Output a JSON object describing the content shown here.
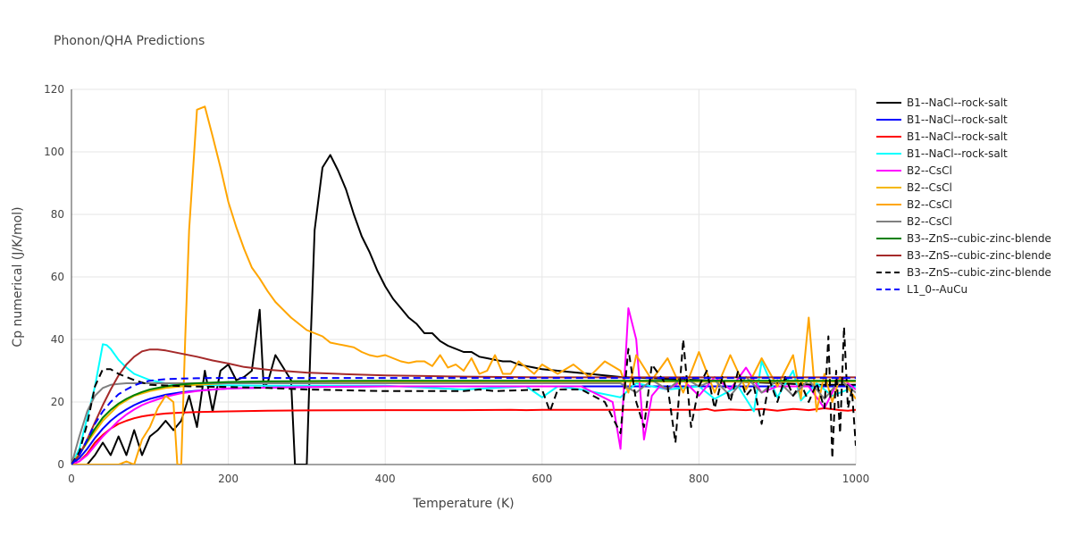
{
  "chart_data": {
    "type": "line",
    "title": "Phonon/QHA Predictions",
    "xlabel": "Temperature (K)",
    "ylabel": "Cp numerical (J/K/mol)",
    "xlim": [
      0,
      1000
    ],
    "ylim": [
      0,
      120
    ],
    "xticks": [
      0,
      200,
      400,
      600,
      800,
      1000
    ],
    "yticks": [
      0,
      20,
      40,
      60,
      80,
      100,
      120
    ],
    "grid": true,
    "legend_position": "right",
    "series": [
      {
        "name": "B1--NaCl--rock-salt",
        "color": "#000000",
        "dash": "solid",
        "x": [
          0,
          10,
          20,
          30,
          40,
          50,
          60,
          70,
          80,
          90,
          100,
          110,
          120,
          130,
          140,
          150,
          160,
          170,
          180,
          190,
          200,
          210,
          220,
          230,
          240,
          245,
          250,
          260,
          270,
          280,
          285,
          290,
          295,
          300,
          305,
          310,
          320,
          330,
          340,
          350,
          360,
          370,
          380,
          390,
          400,
          410,
          420,
          430,
          440,
          450,
          460,
          470,
          480,
          490,
          500,
          510,
          520,
          530,
          540,
          550,
          560,
          570,
          580,
          590,
          600,
          620,
          640,
          660,
          680,
          700,
          750,
          800,
          850,
          900,
          950,
          1000
        ],
        "y": [
          0,
          0,
          0,
          3,
          7,
          3,
          9,
          3,
          11,
          3,
          9,
          11,
          14,
          11,
          14,
          22,
          12,
          30,
          17,
          30,
          32,
          27,
          28,
          30,
          49.5,
          25,
          26,
          35,
          31,
          27,
          0,
          0,
          0,
          0,
          40,
          75,
          95,
          99,
          94,
          88,
          80,
          73,
          68,
          62,
          57,
          53,
          50,
          47,
          45,
          42,
          42,
          39.5,
          38,
          37,
          36,
          36,
          34.5,
          34,
          33.5,
          33,
          33,
          32,
          31.5,
          31,
          30.5,
          30,
          29.5,
          29,
          28.5,
          28,
          27.5,
          27,
          26.5,
          26,
          25.5,
          25.5
        ]
      },
      {
        "name": "B1--NaCl--rock-salt",
        "color": "#0000ff",
        "dash": "solid",
        "x": [
          0,
          10,
          20,
          30,
          40,
          50,
          60,
          70,
          80,
          90,
          100,
          120,
          140,
          160,
          180,
          200,
          250,
          300,
          400,
          500,
          600,
          700,
          800,
          900,
          1000
        ],
        "y": [
          0,
          2,
          5,
          8.5,
          11.5,
          14,
          16,
          17.6,
          19,
          20.1,
          21,
          22.3,
          23.1,
          23.6,
          24,
          24.3,
          24.6,
          24.8,
          25,
          25,
          25,
          25,
          25,
          25,
          25
        ]
      },
      {
        "name": "B1--NaCl--rock-salt",
        "color": "#ff0000",
        "dash": "solid",
        "x": [
          0,
          10,
          20,
          30,
          40,
          50,
          60,
          70,
          80,
          90,
          100,
          120,
          140,
          160,
          180,
          200,
          250,
          300,
          400,
          500,
          560,
          580,
          600,
          700,
          780,
          790,
          800,
          810,
          820,
          840,
          860,
          880,
          900,
          920,
          940,
          960,
          980,
          990,
          1000
        ],
        "y": [
          0,
          1,
          3.5,
          7,
          9.5,
          11.5,
          13,
          14,
          14.8,
          15.4,
          15.8,
          16.3,
          16.6,
          16.8,
          16.9,
          17,
          17.2,
          17.3,
          17.4,
          17.4,
          17.5,
          17.4,
          17.5,
          17.5,
          17.5,
          17.5,
          17.5,
          17.8,
          17.2,
          17.6,
          17.4,
          17.8,
          17.2,
          17.8,
          17.4,
          18,
          17.4,
          17.2,
          17.5
        ]
      },
      {
        "name": "B1--NaCl--rock-salt",
        "color": "#00ffff",
        "dash": "solid",
        "x": [
          0,
          10,
          20,
          30,
          40,
          45,
          50,
          60,
          70,
          80,
          90,
          100,
          120,
          140,
          160,
          180,
          200,
          250,
          300,
          400,
          500,
          580,
          600,
          620,
          650,
          700,
          720,
          760,
          800,
          820,
          850,
          870,
          880,
          900,
          920,
          930,
          950,
          970,
          1000
        ],
        "y": [
          0,
          5,
          15,
          25,
          38.5,
          38.2,
          37,
          33.5,
          31,
          29,
          28,
          27,
          26,
          25.6,
          25.5,
          25.4,
          25.3,
          25.2,
          25.2,
          25.2,
          24,
          25,
          21.5,
          25,
          24,
          21.5,
          26,
          24,
          25,
          21,
          25,
          17,
          33,
          21.5,
          30,
          20.5,
          26,
          22,
          25
        ]
      },
      {
        "name": "B2--CsCl",
        "color": "#ff00ff",
        "dash": "solid",
        "x": [
          0,
          10,
          20,
          30,
          40,
          50,
          60,
          70,
          80,
          90,
          100,
          120,
          140,
          160,
          180,
          200,
          250,
          300,
          400,
          500,
          600,
          650,
          690,
          700,
          710,
          720,
          730,
          740,
          750,
          760,
          780,
          800,
          820,
          840,
          860,
          880,
          900,
          940,
          960,
          980,
          1000
        ],
        "y": [
          0,
          1,
          3,
          6,
          9,
          11.5,
          14,
          16,
          17.6,
          19,
          20,
          21.7,
          22.8,
          23.5,
          24,
          24.3,
          24.6,
          24.8,
          25,
          25,
          25,
          25,
          20,
          5,
          50,
          40,
          8,
          22,
          25,
          24,
          27,
          22,
          28,
          24,
          31,
          23,
          25,
          25,
          18,
          28,
          24
        ]
      },
      {
        "name": "B2--CsCl",
        "color": "#f5b800",
        "dash": "solid",
        "x": [
          0,
          20,
          40,
          60,
          80,
          100,
          120,
          140,
          160,
          180,
          200,
          250,
          300,
          400,
          500,
          600,
          700,
          800,
          900,
          1000
        ],
        "y": [
          0,
          7,
          14,
          19,
          22,
          23.5,
          24.5,
          25,
          25.5,
          25.8,
          26,
          26.2,
          26.4,
          26.5,
          26.5,
          26.5,
          26.5,
          26.5,
          26.5,
          26.5
        ]
      },
      {
        "name": "B2--CsCl",
        "color": "#ffa500",
        "dash": "solid",
        "x": [
          0,
          60,
          70,
          80,
          90,
          100,
          110,
          120,
          130,
          135,
          140,
          145,
          150,
          160,
          170,
          180,
          190,
          200,
          210,
          220,
          230,
          240,
          250,
          260,
          270,
          280,
          290,
          300,
          310,
          320,
          330,
          340,
          350,
          360,
          370,
          380,
          390,
          400,
          410,
          420,
          430,
          440,
          450,
          460,
          470,
          480,
          490,
          500,
          510,
          520,
          530,
          540,
          550,
          560,
          570,
          580,
          590,
          600,
          620,
          640,
          660,
          680,
          700,
          710,
          720,
          740,
          760,
          780,
          800,
          820,
          840,
          860,
          880,
          900,
          920,
          930,
          940,
          950,
          960,
          970,
          980,
          1000
        ],
        "y": [
          0,
          0,
          1,
          0,
          8,
          12,
          18,
          22,
          20,
          0,
          0,
          40,
          75,
          113.5,
          114.5,
          105,
          95,
          84,
          76,
          69,
          63,
          59.5,
          55.5,
          52,
          49.5,
          47,
          45,
          43,
          42,
          41,
          39,
          38.5,
          38,
          37.5,
          36,
          35,
          34.5,
          35,
          34,
          33,
          32.5,
          33,
          33,
          31.5,
          35,
          31,
          32,
          30,
          34,
          29,
          30,
          35,
          29,
          29,
          33,
          31,
          29,
          32,
          29,
          32,
          28,
          33,
          30,
          23,
          35,
          27,
          34,
          23,
          36,
          23,
          35,
          24,
          34,
          25,
          35,
          21,
          47,
          17,
          29,
          20,
          28,
          21
        ]
      },
      {
        "name": "B2--CsCl",
        "color": "#808080",
        "dash": "solid",
        "x": [
          0,
          10,
          20,
          30,
          40,
          50,
          60,
          70,
          80,
          90,
          100,
          120,
          140,
          160,
          180,
          200,
          250,
          300,
          400,
          500,
          600,
          700,
          720,
          740,
          760,
          780,
          800,
          820,
          840,
          860,
          880,
          900,
          920,
          940,
          960,
          980,
          1000
        ],
        "y": [
          0,
          9,
          17,
          22,
          24.5,
          25.5,
          25.8,
          26,
          26,
          26,
          26,
          26,
          26,
          26,
          26,
          26,
          26,
          26,
          26,
          26,
          26,
          26,
          23,
          27,
          24,
          28,
          25,
          27,
          22,
          28,
          23,
          27,
          22,
          27,
          21,
          27,
          23
        ]
      },
      {
        "name": "B3--ZnS--cubic-zinc-blende",
        "color": "#008000",
        "dash": "solid",
        "x": [
          0,
          10,
          20,
          30,
          40,
          50,
          60,
          70,
          80,
          90,
          100,
          120,
          140,
          160,
          180,
          200,
          250,
          300,
          400,
          500,
          600,
          700,
          800,
          900,
          1000
        ],
        "y": [
          0,
          3,
          7.5,
          11.5,
          15,
          17.5,
          19.5,
          21,
          22.2,
          23.2,
          24,
          25,
          25.6,
          26,
          26.2,
          26.4,
          26.6,
          26.7,
          26.8,
          26.8,
          26.8,
          26.8,
          26.8,
          26.8,
          26.8
        ]
      },
      {
        "name": "B3--ZnS--cubic-zinc-blende",
        "color": "#a52a2a",
        "dash": "solid",
        "x": [
          0,
          10,
          20,
          30,
          40,
          50,
          60,
          70,
          80,
          90,
          100,
          110,
          120,
          140,
          160,
          180,
          200,
          220,
          250,
          300,
          350,
          400,
          450,
          500,
          550,
          600,
          650,
          700,
          750,
          800,
          850,
          900,
          950,
          1000
        ],
        "y": [
          0,
          3,
          8,
          13.5,
          19,
          24,
          28.5,
          32,
          34.5,
          36.2,
          36.8,
          36.8,
          36.5,
          35.5,
          34.5,
          33.3,
          32.3,
          31.2,
          30.3,
          29.4,
          28.9,
          28.5,
          28.3,
          28.1,
          28,
          27.9,
          27.9,
          27.9,
          27.9,
          27.9,
          27.9,
          27.9,
          27.9,
          27.9
        ]
      },
      {
        "name": "B3--ZnS--cubic-zinc-blende",
        "color": "#000000",
        "dash": "dash",
        "x": [
          0,
          10,
          20,
          30,
          40,
          50,
          60,
          80,
          100,
          150,
          200,
          250,
          300,
          400,
          450,
          500,
          520,
          540,
          600,
          610,
          620,
          650,
          680,
          700,
          710,
          720,
          730,
          740,
          760,
          770,
          780,
          790,
          800,
          810,
          820,
          830,
          840,
          850,
          860,
          870,
          880,
          890,
          900,
          910,
          920,
          930,
          940,
          950,
          960,
          965,
          970,
          975,
          980,
          985,
          990,
          995,
          1000
        ],
        "y": [
          0,
          4,
          13,
          25,
          30.5,
          30.5,
          29,
          27,
          25.5,
          25,
          24.8,
          24.5,
          24,
          23.5,
          23.5,
          23.5,
          24,
          23.5,
          24,
          17,
          24,
          24,
          20,
          10,
          37,
          20,
          12,
          32,
          25,
          7,
          40,
          12,
          25,
          30,
          18,
          28,
          20,
          30,
          22,
          25,
          13,
          27,
          20,
          28,
          22,
          26,
          20,
          26,
          18,
          41,
          2,
          30,
          10,
          44,
          18,
          24,
          6
        ]
      },
      {
        "name": "L1_0--AuCu",
        "color": "#0000ff",
        "dash": "dash",
        "x": [
          0,
          10,
          20,
          30,
          40,
          50,
          60,
          70,
          80,
          90,
          100,
          120,
          140,
          160,
          180,
          200,
          250,
          300,
          400,
          500,
          600,
          700,
          800,
          900,
          1000
        ],
        "y": [
          0,
          3,
          8,
          13,
          17,
          20,
          22.5,
          24,
          25.3,
          26.2,
          26.8,
          27.3,
          27.5,
          27.6,
          27.7,
          27.7,
          27.7,
          27.7,
          27.7,
          27.7,
          27.7,
          27.7,
          27.7,
          27.7,
          27.7
        ]
      }
    ]
  }
}
